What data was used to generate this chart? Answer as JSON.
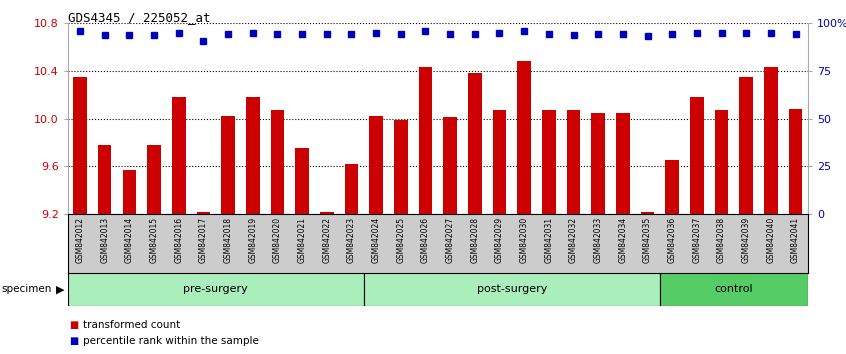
{
  "title": "GDS4345 / 225052_at",
  "samples": [
    "GSM842012",
    "GSM842013",
    "GSM842014",
    "GSM842015",
    "GSM842016",
    "GSM842017",
    "GSM842018",
    "GSM842019",
    "GSM842020",
    "GSM842021",
    "GSM842022",
    "GSM842023",
    "GSM842024",
    "GSM842025",
    "GSM842026",
    "GSM842027",
    "GSM842028",
    "GSM842029",
    "GSM842030",
    "GSM842031",
    "GSM842032",
    "GSM842033",
    "GSM842034",
    "GSM842035",
    "GSM842036",
    "GSM842037",
    "GSM842038",
    "GSM842039",
    "GSM842040",
    "GSM842041"
  ],
  "bar_values": [
    10.35,
    9.78,
    9.57,
    9.78,
    10.18,
    9.22,
    10.02,
    10.18,
    10.07,
    9.75,
    9.22,
    9.62,
    10.02,
    9.99,
    10.43,
    10.01,
    10.38,
    10.07,
    10.48,
    10.07,
    10.07,
    10.05,
    10.05,
    9.22,
    9.65,
    10.18,
    10.07,
    10.35,
    10.43,
    10.08
  ],
  "percentile_y": [
    10.73,
    10.7,
    10.7,
    10.7,
    10.72,
    10.65,
    10.71,
    10.72,
    10.71,
    10.71,
    10.71,
    10.71,
    10.72,
    10.71,
    10.73,
    10.71,
    10.71,
    10.72,
    10.73,
    10.71,
    10.7,
    10.71,
    10.71,
    10.69,
    10.71,
    10.72,
    10.72,
    10.72,
    10.72,
    10.71
  ],
  "ymin": 9.2,
  "ymax": 10.8,
  "bar_color": "#CC0000",
  "dot_color": "#0000BB",
  "yticks": [
    9.2,
    9.6,
    10.0,
    10.4,
    10.8
  ],
  "right_pct_ticks": [
    0,
    25,
    50,
    75,
    100
  ],
  "right_pct_labels": [
    "0",
    "25",
    "50",
    "75",
    "100%"
  ],
  "group_boundaries": [
    0,
    12,
    24,
    30
  ],
  "group_labels": [
    "pre-surgery",
    "post-surgery",
    "control"
  ],
  "group_colors": [
    "#AAEEBB",
    "#AAEEBB",
    "#55CC66"
  ],
  "tick_bg_color": "#CCCCCC",
  "bar_legend": "transformed count",
  "dot_legend": "percentile rank within the sample",
  "specimen_label": "specimen"
}
